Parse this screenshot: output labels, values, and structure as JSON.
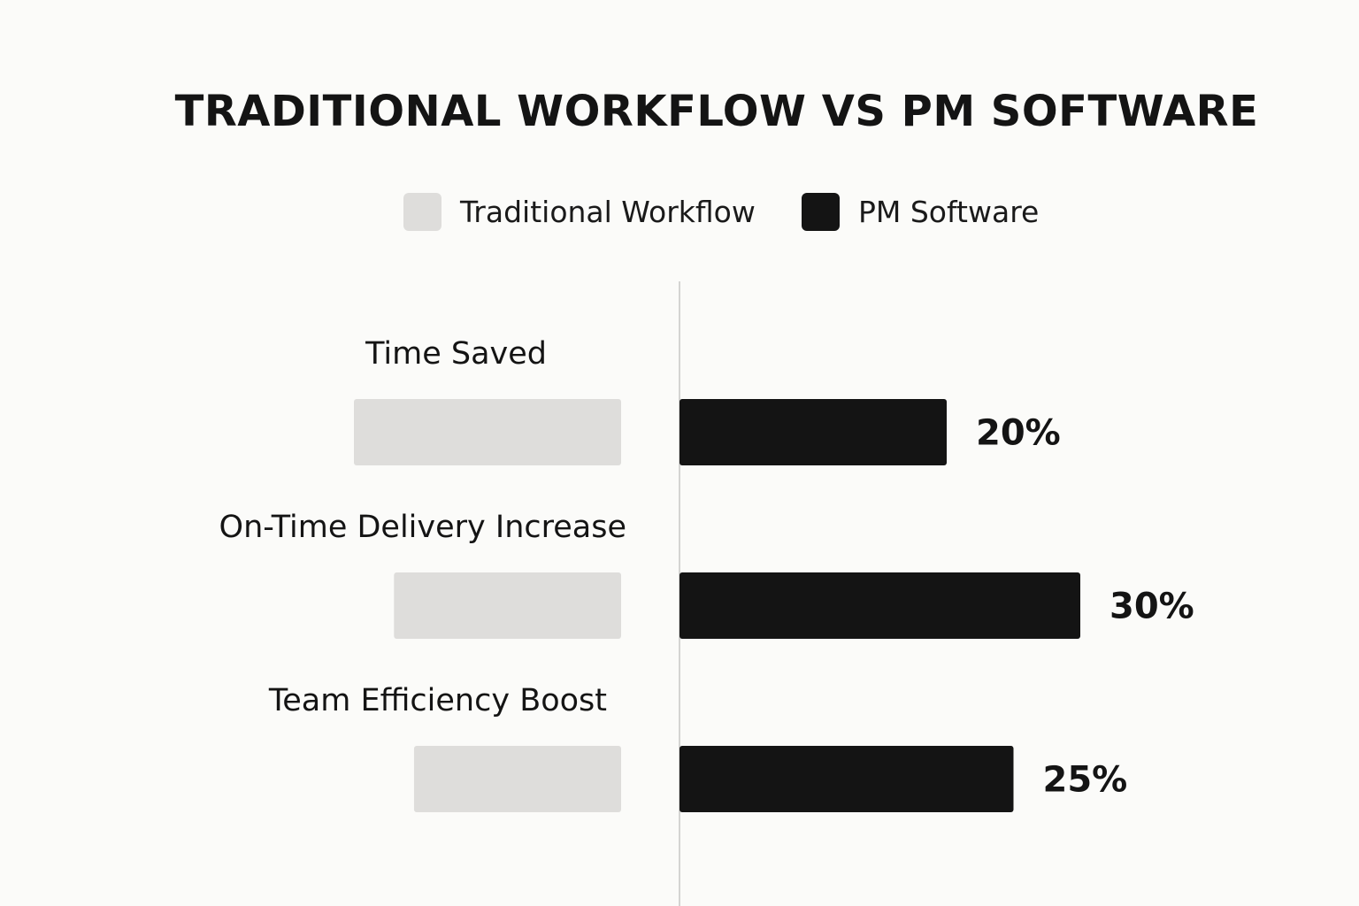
{
  "chart_data": {
    "type": "bar",
    "orientation": "horizontal-diverging",
    "title": "TRADITIONAL WORKFLOW VS PM SOFTWARE",
    "categories": [
      "Time Saved",
      "On-Time Delivery Increase",
      "Team Efficiency Boost"
    ],
    "series": [
      {
        "name": "Traditional Workflow",
        "color": "#dedddb",
        "values": [
          20,
          17,
          15.5
        ]
      },
      {
        "name": "PM Software",
        "color": "#141414",
        "values": [
          20,
          30,
          25
        ]
      }
    ],
    "data_labels": [
      "20%",
      "30%",
      "25%"
    ],
    "legend_position": "top",
    "grid": false,
    "center_axis": true
  }
}
